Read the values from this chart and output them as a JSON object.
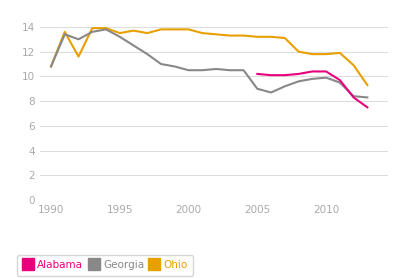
{
  "alabama": {
    "years": [
      2005,
      2006,
      2007,
      2008,
      2009,
      2010,
      2011,
      2012,
      2013
    ],
    "values": [
      10.2,
      10.1,
      10.1,
      10.2,
      10.4,
      10.4,
      9.7,
      8.3,
      7.5
    ],
    "color": "#e8007d"
  },
  "georgia": {
    "years": [
      1990,
      1991,
      1992,
      1993,
      1994,
      1995,
      1996,
      1997,
      1998,
      1999,
      2000,
      2001,
      2002,
      2003,
      2004,
      2005,
      2006,
      2007,
      2008,
      2009,
      2010,
      2011,
      2012,
      2013
    ],
    "values": [
      10.8,
      13.4,
      13.0,
      13.6,
      13.8,
      13.2,
      12.5,
      11.8,
      11.0,
      10.8,
      10.5,
      10.5,
      10.6,
      10.5,
      10.5,
      9.0,
      8.7,
      9.2,
      9.6,
      9.8,
      9.9,
      9.5,
      8.4,
      8.3
    ],
    "color": "#888888"
  },
  "ohio": {
    "years": [
      1990,
      1991,
      1992,
      1993,
      1994,
      1995,
      1996,
      1997,
      1998,
      1999,
      2000,
      2001,
      2002,
      2003,
      2004,
      2005,
      2006,
      2007,
      2008,
      2009,
      2010,
      2011,
      2012,
      2013
    ],
    "values": [
      10.8,
      13.6,
      11.6,
      13.9,
      13.9,
      13.5,
      13.7,
      13.5,
      13.8,
      13.8,
      13.8,
      13.5,
      13.4,
      13.3,
      13.3,
      13.2,
      13.2,
      13.1,
      12.0,
      11.8,
      11.8,
      11.9,
      10.9,
      9.3
    ],
    "color": "#e8a000"
  },
  "yticks": [
    0,
    2,
    4,
    6,
    8,
    10,
    12,
    14
  ],
  "xticks": [
    1990,
    1995,
    2000,
    2005,
    2010
  ],
  "xlim": [
    1989.2,
    2014.5
  ],
  "ylim": [
    0,
    15.5
  ],
  "background_color": "#ffffff",
  "grid_color": "#dddddd",
  "legend": [
    {
      "label": "Alabama",
      "color": "#e8007d"
    },
    {
      "label": "Georgia",
      "color": "#888888"
    },
    {
      "label": "Ohio",
      "color": "#e8a000"
    }
  ]
}
